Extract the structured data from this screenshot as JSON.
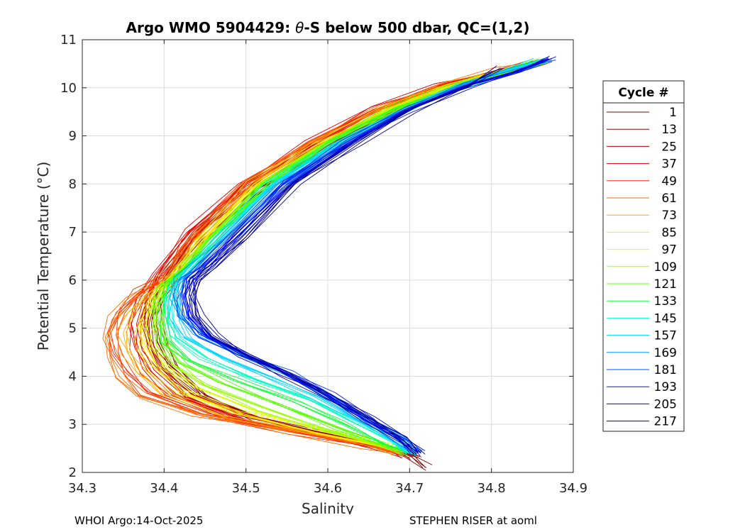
{
  "chart_data": {
    "type": "line",
    "title_parts": [
      "Argo WMO 5904429: ",
      "θ",
      "-S below 500 dbar,  QC=(1,2)"
    ],
    "xlabel": "Salinity",
    "ylabel": "Potential Temperature (°C)",
    "xlim": [
      34.3,
      34.9
    ],
    "ylim": [
      2,
      11
    ],
    "xticks": [
      "34.3",
      "34.4",
      "34.5",
      "34.6",
      "34.7",
      "34.8",
      "34.9"
    ],
    "yticks": [
      "2",
      "3",
      "4",
      "5",
      "6",
      "7",
      "8",
      "9",
      "10",
      "11"
    ],
    "grid": true,
    "legend": {
      "title": "Cycle #",
      "position": "right"
    },
    "series": [
      {
        "name": "1",
        "color": "#800000",
        "x": [
          34.72,
          34.7,
          34.62,
          34.52,
          34.45,
          34.41,
          34.395,
          34.39,
          34.395,
          34.41,
          34.45,
          34.52,
          34.6,
          34.68,
          34.75,
          34.82,
          34.86
        ],
        "y": [
          2.1,
          2.35,
          2.7,
          3.1,
          3.6,
          4.2,
          4.7,
          5.2,
          5.6,
          6.0,
          6.9,
          7.9,
          8.8,
          9.5,
          10.0,
          10.3,
          10.5
        ]
      },
      {
        "name": "13",
        "color": "#a00000",
        "x": [
          34.71,
          34.69,
          34.61,
          34.51,
          34.44,
          34.4,
          34.385,
          34.38,
          34.385,
          34.4,
          34.44,
          34.51,
          34.59,
          34.67,
          34.74,
          34.81,
          34.85
        ],
        "y": [
          2.3,
          2.45,
          2.75,
          3.15,
          3.6,
          4.15,
          4.6,
          5.1,
          5.6,
          6.05,
          6.95,
          7.95,
          8.8,
          9.5,
          10.0,
          10.3,
          10.5
        ]
      },
      {
        "name": "25",
        "color": "#c00000",
        "x": [
          34.7,
          34.68,
          34.6,
          34.5,
          34.43,
          34.395,
          34.38,
          34.375,
          34.38,
          34.395,
          34.435,
          34.5,
          34.58,
          34.66,
          34.74,
          34.81,
          34.85
        ],
        "y": [
          2.3,
          2.45,
          2.75,
          3.1,
          3.55,
          4.1,
          4.6,
          5.1,
          5.6,
          6.1,
          7.0,
          8.0,
          8.85,
          9.55,
          10.05,
          10.35,
          10.5
        ]
      },
      {
        "name": "37",
        "color": "#e60000",
        "x": [
          34.69,
          34.67,
          34.58,
          34.48,
          34.41,
          34.38,
          34.365,
          34.36,
          34.37,
          34.39,
          34.43,
          34.5,
          34.58,
          34.66,
          34.74,
          34.81,
          34.85
        ],
        "y": [
          2.35,
          2.5,
          2.8,
          3.15,
          3.6,
          4.1,
          4.6,
          5.1,
          5.6,
          6.1,
          7.0,
          8.0,
          8.85,
          9.55,
          10.05,
          10.35,
          10.5
        ]
      },
      {
        "name": "49",
        "color": "#ff2a00",
        "x": [
          34.69,
          34.66,
          34.56,
          34.45,
          34.38,
          34.355,
          34.34,
          34.335,
          34.345,
          34.37,
          34.41,
          34.43,
          34.5,
          34.58,
          34.66,
          34.74,
          34.81,
          34.85
        ],
        "y": [
          2.4,
          2.55,
          2.85,
          3.2,
          3.65,
          4.1,
          4.5,
          4.9,
          5.3,
          5.75,
          6.1,
          6.8,
          8.0,
          8.85,
          9.55,
          10.05,
          10.35,
          10.5
        ]
      },
      {
        "name": "61",
        "color": "#ff6a00",
        "x": [
          34.69,
          34.65,
          34.55,
          34.44,
          34.37,
          34.345,
          34.335,
          34.33,
          34.34,
          34.36,
          34.4,
          34.43,
          34.5,
          34.58,
          34.66,
          34.74,
          34.81,
          34.85
        ],
        "y": [
          2.4,
          2.55,
          2.85,
          3.2,
          3.6,
          4.0,
          4.4,
          4.8,
          5.2,
          5.6,
          6.1,
          6.8,
          8.0,
          8.85,
          9.55,
          10.05,
          10.35,
          10.5
        ]
      },
      {
        "name": "73",
        "color": "#ffaa00",
        "x": [
          34.69,
          34.66,
          34.57,
          34.47,
          34.4,
          34.37,
          34.355,
          34.35,
          34.36,
          34.38,
          34.41,
          34.44,
          34.51,
          34.59,
          34.67,
          34.75,
          34.82,
          34.86
        ],
        "y": [
          2.4,
          2.55,
          2.85,
          3.2,
          3.65,
          4.1,
          4.5,
          4.9,
          5.3,
          5.7,
          6.1,
          6.8,
          8.0,
          8.85,
          9.55,
          10.05,
          10.35,
          10.55
        ]
      },
      {
        "name": "85",
        "color": "#ffea00",
        "x": [
          34.69,
          34.66,
          34.58,
          34.49,
          34.42,
          34.39,
          34.375,
          34.37,
          34.375,
          34.39,
          34.415,
          34.445,
          34.51,
          34.59,
          34.67,
          34.75,
          34.82,
          34.86
        ],
        "y": [
          2.4,
          2.55,
          2.85,
          3.25,
          3.7,
          4.15,
          4.55,
          4.95,
          5.35,
          5.75,
          6.1,
          6.8,
          8.0,
          8.85,
          9.55,
          10.05,
          10.35,
          10.55
        ]
      },
      {
        "name": "97",
        "color": "#d5ff00",
        "x": [
          34.7,
          34.67,
          34.59,
          34.51,
          34.44,
          34.4,
          34.385,
          34.38,
          34.385,
          34.395,
          34.42,
          34.45,
          34.52,
          34.6,
          34.68,
          34.76,
          34.82,
          34.86
        ],
        "y": [
          2.4,
          2.55,
          2.9,
          3.3,
          3.75,
          4.2,
          4.6,
          5.0,
          5.4,
          5.8,
          6.15,
          6.8,
          8.0,
          8.85,
          9.55,
          10.05,
          10.35,
          10.55
        ]
      },
      {
        "name": "109",
        "color": "#95ff00",
        "x": [
          34.7,
          34.67,
          34.6,
          34.52,
          34.45,
          34.41,
          34.395,
          34.39,
          34.39,
          34.4,
          34.42,
          34.455,
          34.52,
          34.6,
          34.68,
          34.76,
          34.82,
          34.86
        ],
        "y": [
          2.4,
          2.55,
          2.9,
          3.35,
          3.8,
          4.25,
          4.65,
          5.05,
          5.45,
          5.85,
          6.2,
          6.85,
          8.0,
          8.85,
          9.55,
          10.05,
          10.35,
          10.55
        ]
      },
      {
        "name": "121",
        "color": "#55ff00",
        "x": [
          34.7,
          34.67,
          34.61,
          34.54,
          34.47,
          34.42,
          34.4,
          34.395,
          34.395,
          34.4,
          34.42,
          34.455,
          34.52,
          34.6,
          34.68,
          34.76,
          34.82,
          34.86
        ],
        "y": [
          2.4,
          2.6,
          2.95,
          3.4,
          3.85,
          4.3,
          4.7,
          5.1,
          5.5,
          5.9,
          6.2,
          6.85,
          8.0,
          8.85,
          9.55,
          10.05,
          10.35,
          10.55
        ]
      },
      {
        "name": "133",
        "color": "#15ff40",
        "x": [
          34.7,
          34.67,
          34.62,
          34.56,
          34.49,
          34.43,
          34.405,
          34.4,
          34.4,
          34.405,
          34.425,
          34.46,
          34.53,
          34.61,
          34.69,
          34.76,
          34.82,
          34.86
        ],
        "y": [
          2.4,
          2.6,
          3.0,
          3.45,
          3.9,
          4.35,
          4.75,
          5.15,
          5.55,
          5.9,
          6.2,
          6.85,
          8.0,
          8.85,
          9.55,
          10.05,
          10.35,
          10.55
        ]
      },
      {
        "name": "145",
        "color": "#00ffc0",
        "x": [
          34.7,
          34.68,
          34.63,
          34.58,
          34.51,
          34.45,
          34.415,
          34.405,
          34.405,
          34.41,
          34.43,
          34.465,
          34.53,
          34.61,
          34.69,
          34.76,
          34.82,
          34.86
        ],
        "y": [
          2.4,
          2.65,
          3.05,
          3.5,
          3.95,
          4.4,
          4.8,
          5.2,
          5.6,
          5.95,
          6.25,
          6.85,
          8.0,
          8.85,
          9.55,
          10.05,
          10.35,
          10.55
        ]
      },
      {
        "name": "157",
        "color": "#00d5ff",
        "x": [
          34.7,
          34.68,
          34.64,
          34.59,
          34.53,
          34.47,
          34.425,
          34.41,
          34.41,
          34.415,
          34.435,
          34.47,
          34.535,
          34.61,
          34.69,
          34.76,
          34.82,
          34.86
        ],
        "y": [
          2.4,
          2.65,
          3.05,
          3.55,
          4.0,
          4.4,
          4.8,
          5.2,
          5.6,
          5.95,
          6.25,
          6.85,
          8.0,
          8.85,
          9.55,
          10.05,
          10.35,
          10.55
        ]
      },
      {
        "name": "169",
        "color": "#0095ff",
        "x": [
          34.71,
          34.69,
          34.65,
          34.6,
          34.55,
          34.49,
          34.44,
          34.42,
          34.415,
          34.42,
          34.44,
          34.475,
          34.54,
          34.62,
          34.7,
          34.77,
          34.83,
          34.87
        ],
        "y": [
          2.4,
          2.7,
          3.1,
          3.6,
          4.05,
          4.45,
          4.85,
          5.25,
          5.65,
          6.0,
          6.3,
          6.9,
          8.0,
          8.85,
          9.55,
          10.05,
          10.35,
          10.6
        ]
      },
      {
        "name": "181",
        "color": "#0055ff",
        "x": [
          34.71,
          34.69,
          34.65,
          34.6,
          34.55,
          34.49,
          34.45,
          34.425,
          34.42,
          34.425,
          34.445,
          34.48,
          34.545,
          34.62,
          34.7,
          34.77,
          34.83,
          34.87
        ],
        "y": [
          2.4,
          2.7,
          3.1,
          3.6,
          4.05,
          4.45,
          4.85,
          5.25,
          5.65,
          6.0,
          6.3,
          6.9,
          8.0,
          8.85,
          9.55,
          10.05,
          10.35,
          10.6
        ]
      },
      {
        "name": "193",
        "color": "#0015ff",
        "x": [
          34.71,
          34.69,
          34.65,
          34.6,
          34.55,
          34.5,
          34.45,
          34.43,
          34.425,
          34.43,
          34.45,
          34.485,
          34.55,
          34.625,
          34.7,
          34.77,
          34.83,
          34.87
        ],
        "y": [
          2.4,
          2.7,
          3.1,
          3.6,
          4.05,
          4.45,
          4.85,
          5.25,
          5.65,
          6.0,
          6.3,
          6.9,
          8.0,
          8.85,
          9.55,
          10.05,
          10.35,
          10.6
        ]
      },
      {
        "name": "205",
        "color": "#0000d5",
        "x": [
          34.71,
          34.69,
          34.65,
          34.6,
          34.55,
          34.5,
          34.455,
          34.435,
          34.43,
          34.435,
          34.455,
          34.49,
          34.555,
          34.63,
          34.7,
          34.77,
          34.83,
          34.87
        ],
        "y": [
          2.4,
          2.7,
          3.1,
          3.6,
          4.05,
          4.45,
          4.85,
          5.25,
          5.65,
          6.0,
          6.3,
          6.9,
          8.0,
          8.85,
          9.55,
          10.05,
          10.35,
          10.6
        ]
      },
      {
        "name": "217",
        "color": "#000095",
        "x": [
          34.71,
          34.69,
          34.65,
          34.6,
          34.55,
          34.5,
          34.46,
          34.44,
          34.435,
          34.44,
          34.46,
          34.5,
          34.56,
          34.635,
          34.7,
          34.77,
          34.81
        ],
        "y": [
          2.4,
          2.7,
          3.1,
          3.6,
          4.05,
          4.45,
          4.85,
          5.25,
          5.65,
          6.0,
          6.3,
          6.9,
          8.0,
          8.85,
          9.55,
          10.05,
          10.4
        ]
      }
    ]
  },
  "footer": {
    "left": "WHOI Argo:14-Oct-2025",
    "right": "STEPHEN RISER at aoml"
  }
}
